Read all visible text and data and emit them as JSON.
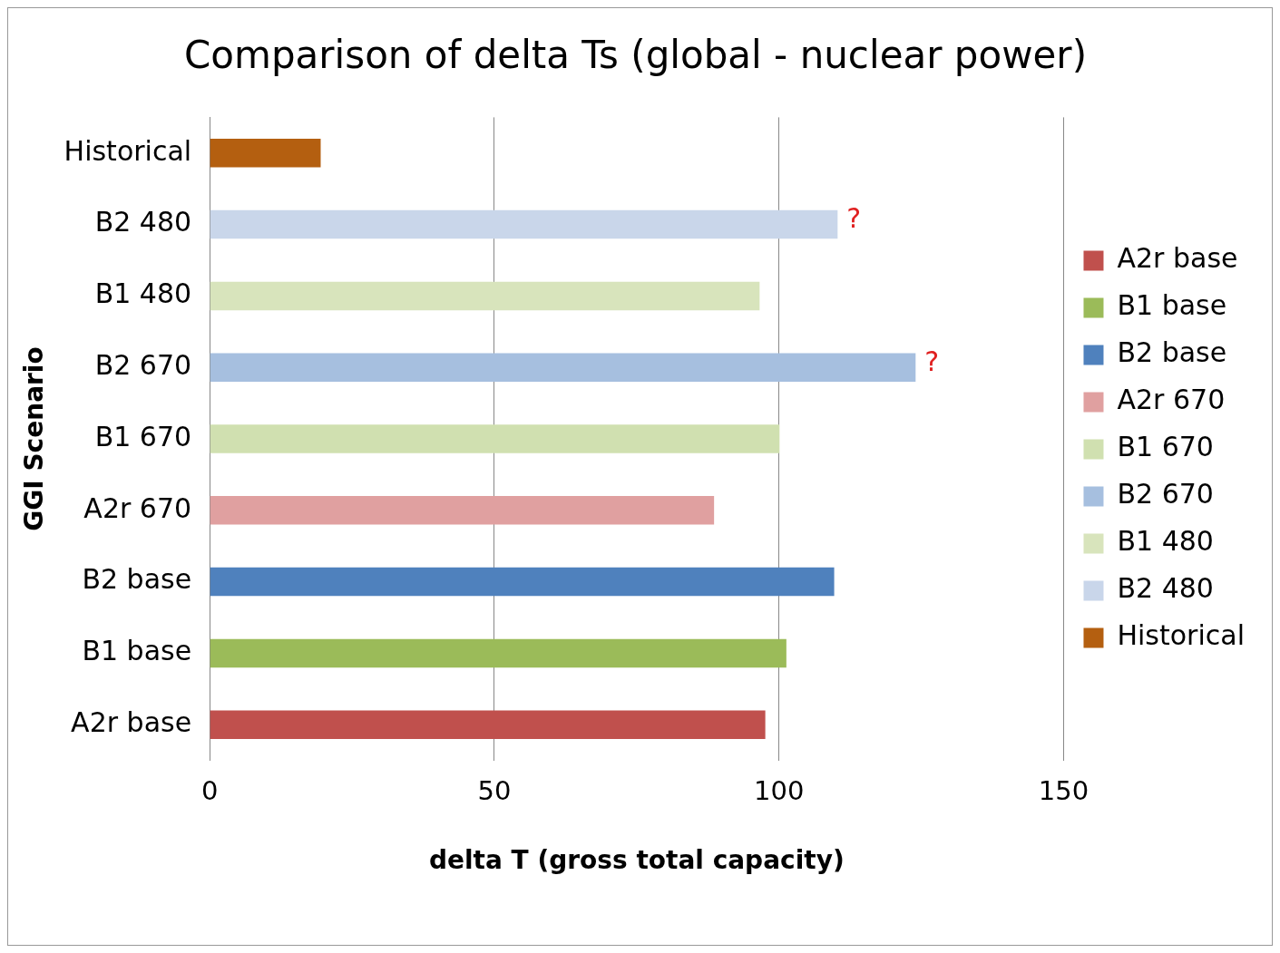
{
  "chart_data": {
    "type": "bar",
    "orientation": "horizontal",
    "stacked": true,
    "title": "Comparison of delta Ts (global - nuclear power)",
    "xlabel": "delta T (gross total capacity)",
    "ylabel": "GGI Scenario",
    "categories": [
      "Historical",
      "B2 480",
      "B1 480",
      "B2 670",
      "B1 670",
      "A2r 670",
      "B2 base",
      "B1 base",
      "A2r base"
    ],
    "series": [
      {
        "name": "A2r base",
        "color": "#c0504d",
        "values": [
          null,
          null,
          null,
          null,
          null,
          null,
          null,
          null,
          97.6
        ]
      },
      {
        "name": "B1 base",
        "color": "#9bbb59",
        "values": [
          null,
          null,
          null,
          null,
          null,
          null,
          null,
          101.3,
          null
        ]
      },
      {
        "name": "B2 base",
        "color": "#4f81bd",
        "values": [
          null,
          null,
          null,
          null,
          null,
          null,
          109.7,
          null,
          null
        ]
      },
      {
        "name": "A2r 670",
        "color": "#e0a0a0",
        "values": [
          null,
          null,
          null,
          null,
          null,
          88.6,
          null,
          null,
          null
        ]
      },
      {
        "name": "B1 670",
        "color": "#d0e0b0",
        "values": [
          null,
          null,
          null,
          null,
          100.1,
          null,
          null,
          null,
          null
        ]
      },
      {
        "name": "B2 670",
        "color": "#a6bfdf",
        "values": [
          null,
          null,
          null,
          124,
          null,
          null,
          null,
          null,
          null
        ]
      },
      {
        "name": "B1 480",
        "color": "#d8e4bc",
        "values": [
          null,
          null,
          96.6,
          null,
          null,
          null,
          null,
          null,
          null
        ]
      },
      {
        "name": "B2 480",
        "color": "#c9d6ea",
        "values": [
          null,
          110.3,
          null,
          null,
          null,
          null,
          null,
          null,
          null
        ]
      },
      {
        "name": "Historical",
        "color": "#b45f10",
        "values": [
          19.5,
          null,
          null,
          null,
          null,
          null,
          null,
          null,
          null
        ]
      }
    ],
    "xlim": [
      0,
      150
    ],
    "xticks": [
      0,
      50,
      100,
      150
    ],
    "grid": "x",
    "legend": "right",
    "annotations": [
      {
        "text": "?",
        "x": 110.3,
        "y": "B2 480"
      },
      {
        "text": "?",
        "x": 124,
        "y": "B2 670"
      }
    ]
  }
}
